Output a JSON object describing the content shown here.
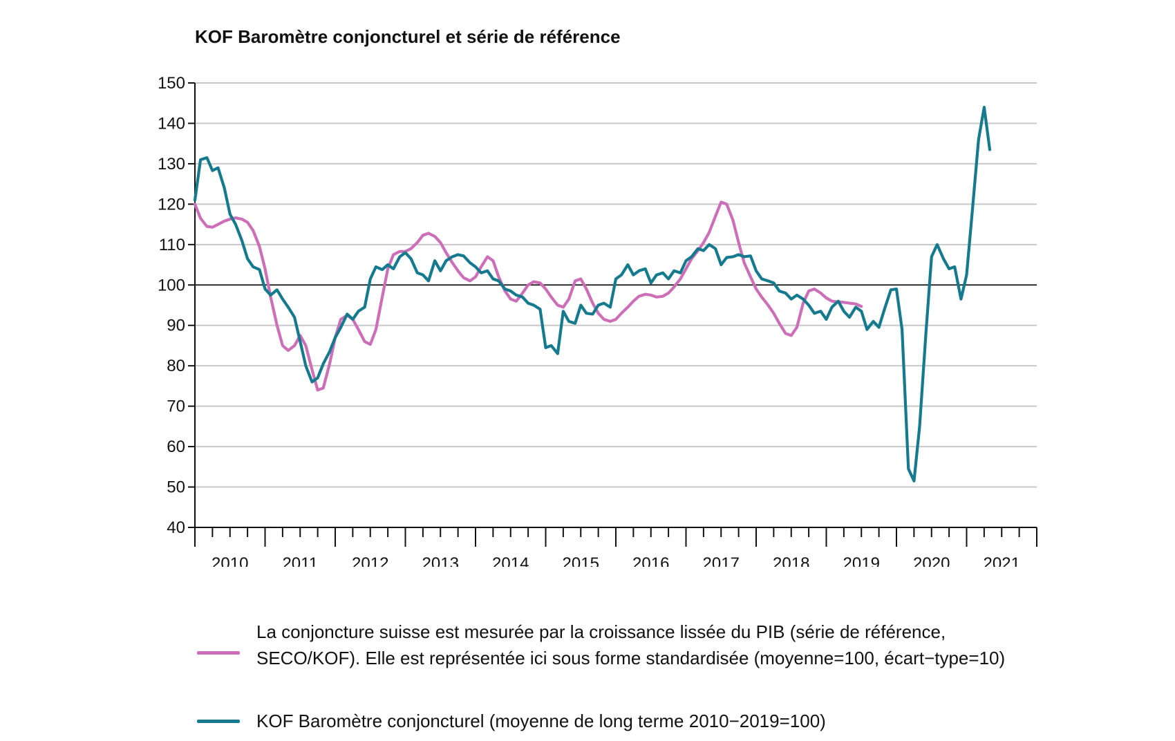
{
  "chart_data": {
    "type": "line",
    "title": "KOF Baromètre conjoncturel et série de référence",
    "ylim": [
      40,
      150
    ],
    "yticks": [
      40,
      50,
      60,
      70,
      80,
      90,
      100,
      110,
      120,
      130,
      140,
      150
    ],
    "xlim": [
      2010,
      2022
    ],
    "x_tick_labels": [
      "2010",
      "2011",
      "2012",
      "2013",
      "2014",
      "2015",
      "2016",
      "2017",
      "2018",
      "2019",
      "2020",
      "2021"
    ],
    "reference_line": 100,
    "grid": "horizontal",
    "legend_position": "bottom",
    "series": [
      {
        "name": "La conjoncture suisse est mesurée par la croissance lissée du PIB (série de référence, SECO/KOF). Elle est représentée ici sous forme standardisée (moyenne=100, écart−type=10)",
        "color": "#cc6eb8",
        "points": [
          [
            2010.0,
            120.0
          ],
          [
            2010.08,
            116.5
          ],
          [
            2010.17,
            114.5
          ],
          [
            2010.25,
            114.3
          ],
          [
            2010.33,
            115.0
          ],
          [
            2010.42,
            115.8
          ],
          [
            2010.5,
            116.3
          ],
          [
            2010.58,
            116.6
          ],
          [
            2010.67,
            116.3
          ],
          [
            2010.75,
            115.5
          ],
          [
            2010.83,
            113.5
          ],
          [
            2010.92,
            109.5
          ],
          [
            2011.0,
            104.0
          ],
          [
            2011.08,
            97.0
          ],
          [
            2011.17,
            90.0
          ],
          [
            2011.25,
            85.0
          ],
          [
            2011.33,
            83.8
          ],
          [
            2011.42,
            85.0
          ],
          [
            2011.5,
            87.5
          ],
          [
            2011.58,
            85.0
          ],
          [
            2011.67,
            79.0
          ],
          [
            2011.75,
            74.0
          ],
          [
            2011.83,
            74.5
          ],
          [
            2011.92,
            80.5
          ],
          [
            2012.0,
            87.0
          ],
          [
            2012.08,
            91.5
          ],
          [
            2012.17,
            92.5
          ],
          [
            2012.25,
            91.5
          ],
          [
            2012.33,
            89.0
          ],
          [
            2012.42,
            86.0
          ],
          [
            2012.5,
            85.3
          ],
          [
            2012.58,
            89.0
          ],
          [
            2012.67,
            97.0
          ],
          [
            2012.75,
            104.0
          ],
          [
            2012.83,
            107.5
          ],
          [
            2012.92,
            108.3
          ],
          [
            2013.0,
            108.3
          ],
          [
            2013.08,
            109.0
          ],
          [
            2013.17,
            110.5
          ],
          [
            2013.25,
            112.3
          ],
          [
            2013.33,
            112.8
          ],
          [
            2013.42,
            112.0
          ],
          [
            2013.5,
            110.5
          ],
          [
            2013.58,
            108.0
          ],
          [
            2013.67,
            105.5
          ],
          [
            2013.75,
            103.5
          ],
          [
            2013.83,
            101.8
          ],
          [
            2013.92,
            101.0
          ],
          [
            2014.0,
            102.0
          ],
          [
            2014.08,
            104.5
          ],
          [
            2014.17,
            107.0
          ],
          [
            2014.25,
            106.0
          ],
          [
            2014.33,
            102.0
          ],
          [
            2014.42,
            98.5
          ],
          [
            2014.5,
            96.5
          ],
          [
            2014.58,
            96.0
          ],
          [
            2014.67,
            98.0
          ],
          [
            2014.75,
            100.0
          ],
          [
            2014.83,
            100.8
          ],
          [
            2014.92,
            100.5
          ],
          [
            2015.0,
            99.0
          ],
          [
            2015.08,
            97.0
          ],
          [
            2015.17,
            95.0
          ],
          [
            2015.25,
            94.5
          ],
          [
            2015.33,
            96.5
          ],
          [
            2015.42,
            101.0
          ],
          [
            2015.5,
            101.5
          ],
          [
            2015.58,
            99.0
          ],
          [
            2015.67,
            95.5
          ],
          [
            2015.75,
            93.0
          ],
          [
            2015.83,
            91.5
          ],
          [
            2015.92,
            91.0
          ],
          [
            2016.0,
            91.5
          ],
          [
            2016.08,
            93.0
          ],
          [
            2016.17,
            94.5
          ],
          [
            2016.25,
            96.0
          ],
          [
            2016.33,
            97.2
          ],
          [
            2016.42,
            97.7
          ],
          [
            2016.5,
            97.5
          ],
          [
            2016.58,
            97.0
          ],
          [
            2016.67,
            97.2
          ],
          [
            2016.75,
            98.0
          ],
          [
            2016.83,
            99.5
          ],
          [
            2016.92,
            101.5
          ],
          [
            2017.0,
            104.0
          ],
          [
            2017.08,
            106.5
          ],
          [
            2017.17,
            108.5
          ],
          [
            2017.25,
            110.5
          ],
          [
            2017.33,
            113.0
          ],
          [
            2017.42,
            117.0
          ],
          [
            2017.5,
            120.5
          ],
          [
            2017.58,
            120.0
          ],
          [
            2017.67,
            116.0
          ],
          [
            2017.75,
            110.5
          ],
          [
            2017.83,
            105.5
          ],
          [
            2017.92,
            102.0
          ],
          [
            2018.0,
            99.0
          ],
          [
            2018.08,
            97.0
          ],
          [
            2018.17,
            95.0
          ],
          [
            2018.25,
            93.0
          ],
          [
            2018.33,
            90.5
          ],
          [
            2018.42,
            88.0
          ],
          [
            2018.5,
            87.5
          ],
          [
            2018.58,
            89.5
          ],
          [
            2018.67,
            95.5
          ],
          [
            2018.75,
            98.5
          ],
          [
            2018.83,
            99.0
          ],
          [
            2018.92,
            98.0
          ],
          [
            2019.0,
            96.8
          ],
          [
            2019.08,
            96.0
          ],
          [
            2019.17,
            95.8
          ],
          [
            2019.25,
            95.7
          ],
          [
            2019.33,
            95.5
          ],
          [
            2019.42,
            95.3
          ],
          [
            2019.5,
            94.7
          ]
        ]
      },
      {
        "name": "KOF Baromètre conjoncturel (moyenne de long terme 2010−2019=100)",
        "color": "#157a8e",
        "points": [
          [
            2010.0,
            121.0
          ],
          [
            2010.08,
            131.0
          ],
          [
            2010.17,
            131.5
          ],
          [
            2010.25,
            128.3
          ],
          [
            2010.33,
            129.0
          ],
          [
            2010.42,
            124.0
          ],
          [
            2010.5,
            117.5
          ],
          [
            2010.58,
            115.0
          ],
          [
            2010.67,
            111.0
          ],
          [
            2010.75,
            106.5
          ],
          [
            2010.83,
            104.5
          ],
          [
            2010.92,
            103.8
          ],
          [
            2011.0,
            99.0
          ],
          [
            2011.08,
            97.5
          ],
          [
            2011.17,
            98.8
          ],
          [
            2011.25,
            96.5
          ],
          [
            2011.33,
            94.5
          ],
          [
            2011.42,
            92.0
          ],
          [
            2011.5,
            86.0
          ],
          [
            2011.58,
            80.0
          ],
          [
            2011.67,
            76.0
          ],
          [
            2011.75,
            77.0
          ],
          [
            2011.83,
            80.5
          ],
          [
            2011.92,
            83.5
          ],
          [
            2012.0,
            87.0
          ],
          [
            2012.08,
            89.5
          ],
          [
            2012.17,
            92.8
          ],
          [
            2012.25,
            91.5
          ],
          [
            2012.33,
            93.5
          ],
          [
            2012.42,
            94.5
          ],
          [
            2012.5,
            101.5
          ],
          [
            2012.58,
            104.5
          ],
          [
            2012.67,
            103.8
          ],
          [
            2012.75,
            105.0
          ],
          [
            2012.83,
            104.0
          ],
          [
            2012.92,
            107.0
          ],
          [
            2013.0,
            108.0
          ],
          [
            2013.08,
            106.5
          ],
          [
            2013.17,
            103.0
          ],
          [
            2013.25,
            102.5
          ],
          [
            2013.33,
            101.0
          ],
          [
            2013.42,
            106.0
          ],
          [
            2013.5,
            103.5
          ],
          [
            2013.58,
            106.0
          ],
          [
            2013.67,
            107.0
          ],
          [
            2013.75,
            107.5
          ],
          [
            2013.83,
            107.2
          ],
          [
            2013.92,
            105.5
          ],
          [
            2014.0,
            104.5
          ],
          [
            2014.08,
            103.0
          ],
          [
            2014.17,
            103.5
          ],
          [
            2014.25,
            101.5
          ],
          [
            2014.33,
            101.0
          ],
          [
            2014.42,
            99.0
          ],
          [
            2014.5,
            98.5
          ],
          [
            2014.58,
            97.5
          ],
          [
            2014.67,
            97.0
          ],
          [
            2014.75,
            95.5
          ],
          [
            2014.83,
            95.0
          ],
          [
            2014.92,
            94.0
          ],
          [
            2015.0,
            84.5
          ],
          [
            2015.08,
            85.0
          ],
          [
            2015.17,
            83.0
          ],
          [
            2015.25,
            93.5
          ],
          [
            2015.33,
            91.0
          ],
          [
            2015.42,
            90.5
          ],
          [
            2015.5,
            95.0
          ],
          [
            2015.58,
            93.0
          ],
          [
            2015.67,
            92.8
          ],
          [
            2015.75,
            95.0
          ],
          [
            2015.83,
            95.5
          ],
          [
            2015.92,
            94.5
          ],
          [
            2016.0,
            101.5
          ],
          [
            2016.08,
            102.5
          ],
          [
            2016.17,
            105.0
          ],
          [
            2016.25,
            102.5
          ],
          [
            2016.33,
            103.5
          ],
          [
            2016.42,
            104.0
          ],
          [
            2016.5,
            100.5
          ],
          [
            2016.58,
            102.5
          ],
          [
            2016.67,
            103.0
          ],
          [
            2016.75,
            101.5
          ],
          [
            2016.83,
            103.5
          ],
          [
            2016.92,
            103.0
          ],
          [
            2017.0,
            106.0
          ],
          [
            2017.08,
            107.0
          ],
          [
            2017.17,
            109.0
          ],
          [
            2017.25,
            108.5
          ],
          [
            2017.33,
            110.0
          ],
          [
            2017.42,
            109.0
          ],
          [
            2017.5,
            105.0
          ],
          [
            2017.58,
            106.8
          ],
          [
            2017.67,
            107.0
          ],
          [
            2017.75,
            107.5
          ],
          [
            2017.83,
            107.0
          ],
          [
            2017.92,
            107.2
          ],
          [
            2018.0,
            103.5
          ],
          [
            2018.08,
            101.5
          ],
          [
            2018.17,
            101.0
          ],
          [
            2018.25,
            100.5
          ],
          [
            2018.33,
            98.5
          ],
          [
            2018.42,
            98.0
          ],
          [
            2018.5,
            96.5
          ],
          [
            2018.58,
            97.5
          ],
          [
            2018.67,
            96.5
          ],
          [
            2018.75,
            95.0
          ],
          [
            2018.83,
            93.0
          ],
          [
            2018.92,
            93.5
          ],
          [
            2019.0,
            91.5
          ],
          [
            2019.08,
            94.5
          ],
          [
            2019.17,
            96.0
          ],
          [
            2019.25,
            93.5
          ],
          [
            2019.33,
            92.0
          ],
          [
            2019.42,
            94.5
          ],
          [
            2019.5,
            93.5
          ],
          [
            2019.58,
            89.0
          ],
          [
            2019.67,
            91.0
          ],
          [
            2019.75,
            89.5
          ],
          [
            2019.83,
            94.0
          ],
          [
            2019.92,
            98.8
          ],
          [
            2020.0,
            99.0
          ],
          [
            2020.08,
            89.0
          ],
          [
            2020.17,
            54.5
          ],
          [
            2020.25,
            51.5
          ],
          [
            2020.33,
            65.0
          ],
          [
            2020.42,
            88.0
          ],
          [
            2020.5,
            107.0
          ],
          [
            2020.58,
            110.0
          ],
          [
            2020.67,
            106.5
          ],
          [
            2020.75,
            104.0
          ],
          [
            2020.83,
            104.5
          ],
          [
            2020.92,
            96.5
          ],
          [
            2021.0,
            102.5
          ],
          [
            2021.08,
            118.0
          ],
          [
            2021.17,
            136.0
          ],
          [
            2021.25,
            144.0
          ],
          [
            2021.33,
            133.5
          ]
        ]
      }
    ]
  }
}
